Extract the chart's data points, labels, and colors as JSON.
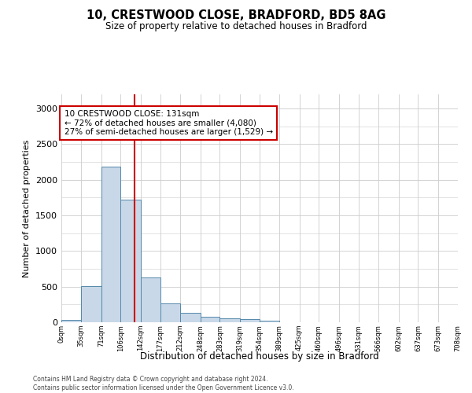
{
  "title_line1": "10, CRESTWOOD CLOSE, BRADFORD, BD5 8AG",
  "title_line2": "Size of property relative to detached houses in Bradford",
  "xlabel": "Distribution of detached houses by size in Bradford",
  "ylabel": "Number of detached properties",
  "annotation_line1": "10 CRESTWOOD CLOSE: 131sqm",
  "annotation_line2": "← 72% of detached houses are smaller (4,080)",
  "annotation_line3": "27% of semi-detached houses are larger (1,529) →",
  "property_size_sqm": 131,
  "bin_edges": [
    0,
    35,
    71,
    106,
    142,
    177,
    212,
    248,
    283,
    319,
    354,
    389,
    425,
    460,
    496,
    531,
    566,
    602,
    637,
    673,
    708
  ],
  "bar_heights": [
    30,
    510,
    2180,
    1720,
    630,
    265,
    130,
    80,
    50,
    40,
    20,
    5,
    3,
    2,
    1,
    0,
    0,
    0,
    0,
    0
  ],
  "bar_color": "#c8d8e8",
  "bar_edge_color": "#5588aa",
  "vline_color": "#cc0000",
  "vline_x": 131,
  "annotation_box_edge_color": "#cc0000",
  "annotation_box_face_color": "#ffffff",
  "ylim": [
    0,
    3200
  ],
  "yticks": [
    0,
    500,
    1000,
    1500,
    2000,
    2500,
    3000
  ],
  "grid_color": "#cccccc",
  "background_color": "#ffffff",
  "footer_line1": "Contains HM Land Registry data © Crown copyright and database right 2024.",
  "footer_line2": "Contains public sector information licensed under the Open Government Licence v3.0."
}
